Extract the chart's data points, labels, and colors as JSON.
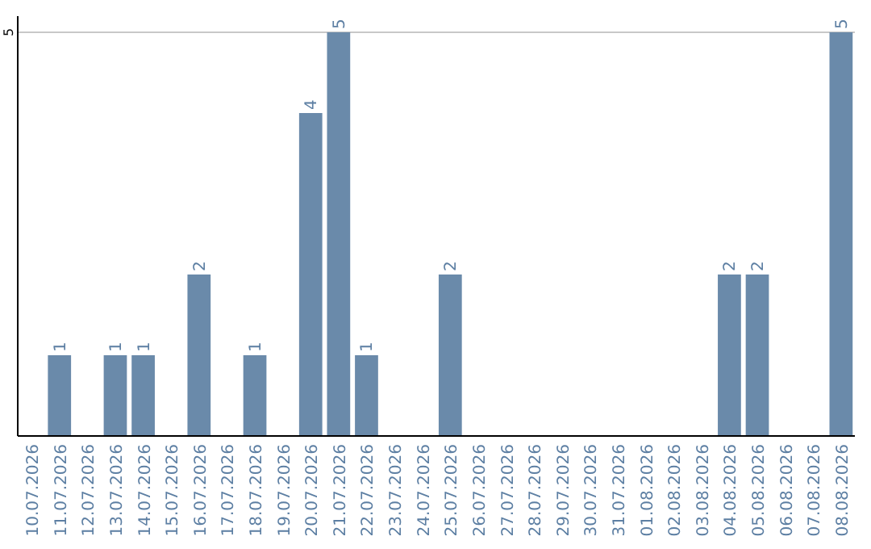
{
  "chart_data": {
    "type": "bar",
    "categories": [
      "10.07.2026",
      "11.07.2026",
      "12.07.2026",
      "13.07.2026",
      "14.07.2026",
      "15.07.2026",
      "16.07.2026",
      "17.07.2026",
      "18.07.2026",
      "19.07.2026",
      "20.07.2026",
      "21.07.2026",
      "22.07.2026",
      "23.07.2026",
      "24.07.2026",
      "25.07.2026",
      "26.07.2026",
      "27.07.2026",
      "28.07.2026",
      "29.07.2026",
      "30.07.2026",
      "31.07.2026",
      "01.08.2026",
      "02.08.2026",
      "03.08.2026",
      "04.08.2026",
      "05.08.2026",
      "06.08.2026",
      "07.08.2026",
      "08.08.2026"
    ],
    "values": [
      0,
      1,
      0,
      1,
      1,
      0,
      2,
      0,
      1,
      0,
      4,
      5,
      1,
      0,
      0,
      2,
      0,
      0,
      0,
      0,
      0,
      0,
      0,
      0,
      0,
      2,
      2,
      0,
      0,
      5
    ],
    "value_labels": [
      null,
      "1",
      null,
      "1",
      "1",
      null,
      "2",
      null,
      "1",
      null,
      "4",
      "5",
      "1",
      null,
      null,
      "2",
      null,
      null,
      null,
      null,
      null,
      null,
      null,
      null,
      null,
      "2",
      "2",
      null,
      null,
      "5"
    ],
    "color": "#6a8aaa",
    "ylim": [
      0,
      5.2
    ],
    "yticks": [
      5
    ],
    "grid": "y"
  }
}
